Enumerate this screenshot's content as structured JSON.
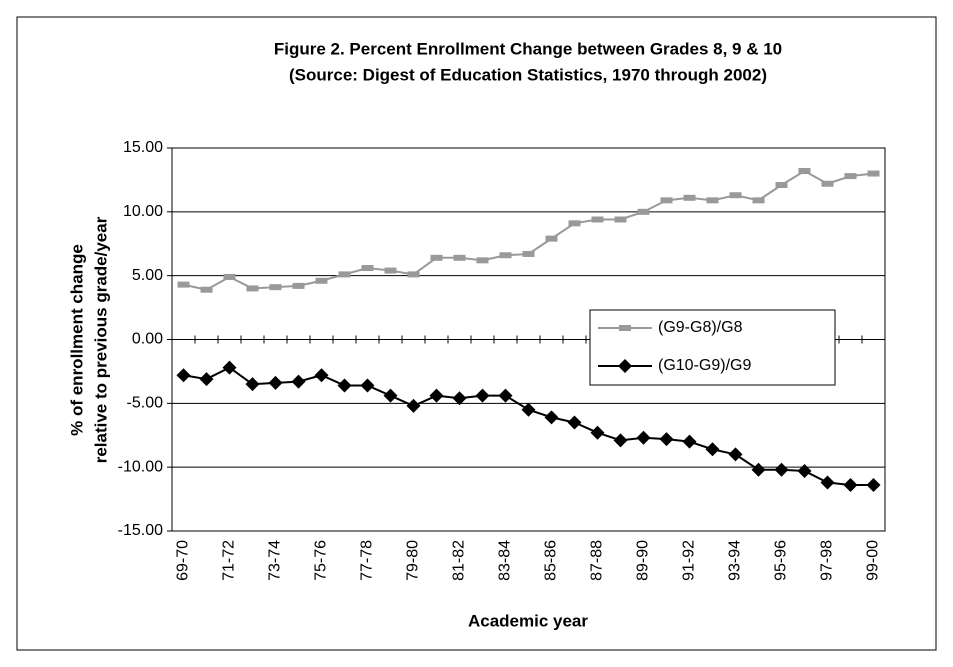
{
  "chart_data": {
    "type": "line",
    "title": "Figure 2. Percent Enrollment Change between Grades 8, 9 & 10",
    "subtitle": "(Source: Digest of Education Statistics, 1970 through 2002)",
    "x_label": "Academic year",
    "y_label": [
      "% of enrollment change",
      "relative to previous grade/year"
    ],
    "categories": [
      "69-70",
      null,
      "71-72",
      null,
      "73-74",
      null,
      "75-76",
      null,
      "77-78",
      null,
      "79-80",
      null,
      "81-82",
      null,
      "83-84",
      null,
      "85-86",
      null,
      "87-88",
      null,
      "89-90",
      null,
      "91-92",
      null,
      "93-94",
      null,
      "95-96",
      null,
      "97-98",
      null,
      "99-00"
    ],
    "series": [
      {
        "name": "(G9-G8)/G8",
        "color": "#999999",
        "marker": "square",
        "values": [
          4.3,
          3.9,
          4.9,
          4.0,
          4.1,
          4.2,
          4.6,
          5.1,
          5.6,
          5.4,
          5.1,
          6.4,
          6.4,
          6.2,
          6.6,
          6.7,
          7.9,
          9.1,
          9.4,
          9.4,
          10.0,
          10.9,
          11.1,
          10.9,
          11.3,
          10.9,
          12.1,
          13.2,
          12.2,
          12.8,
          13.0
        ]
      },
      {
        "name": "(G10-G9)/G9",
        "color": "#000000",
        "marker": "diamond",
        "values": [
          -2.8,
          -3.1,
          -2.2,
          -3.5,
          -3.4,
          -3.3,
          -2.8,
          -3.6,
          -3.6,
          -4.4,
          -5.2,
          -4.4,
          -4.6,
          -4.4,
          -4.4,
          -5.5,
          -6.1,
          -6.5,
          -7.3,
          -7.9,
          -7.7,
          -7.8,
          -8.0,
          -8.6,
          -9.0,
          -10.2,
          -10.2,
          -10.3,
          -11.2,
          -11.4,
          -11.4
        ]
      }
    ],
    "ylim": [
      -15,
      15
    ],
    "yticks": [
      {
        "value": -15,
        "label": "-15.00"
      },
      {
        "value": -10,
        "label": "-10.00"
      },
      {
        "value": -5,
        "label": "-5.00"
      },
      {
        "value": 0,
        "label": "0.00"
      },
      {
        "value": 5,
        "label": "5.00"
      },
      {
        "value": 10,
        "label": "10.00"
      },
      {
        "value": 15,
        "label": "15.00"
      }
    ],
    "grid": true
  }
}
